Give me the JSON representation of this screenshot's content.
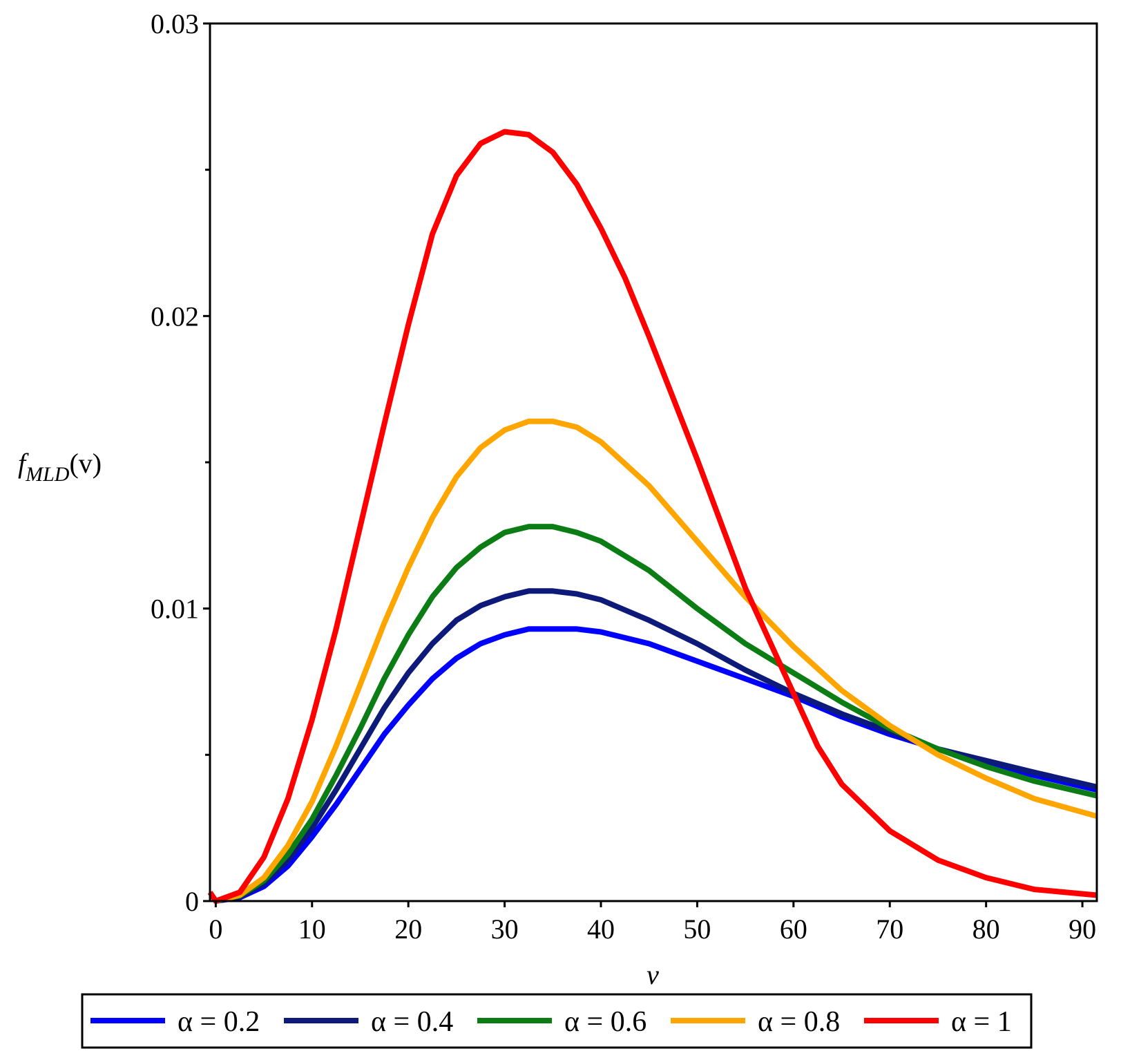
{
  "chart_data": {
    "type": "line",
    "title": "",
    "xlabel": "v",
    "ylabel": {
      "main": "f",
      "subscript": "MLD",
      "arg": "(v)"
    },
    "xlim": [
      -0.6,
      91.5
    ],
    "ylim": [
      0,
      0.03
    ],
    "xticks": [
      0,
      10,
      20,
      30,
      40,
      50,
      60,
      70,
      80,
      90
    ],
    "xtick_labels": [
      "0",
      "10",
      "20",
      "30",
      "40",
      "50",
      "60",
      "70",
      "80",
      "90"
    ],
    "yticks": [
      0,
      0.01,
      0.02,
      0.03
    ],
    "ytick_labels": [
      "0",
      "0.01",
      "0.02",
      "0.03"
    ],
    "y_minor_ticks": [
      0.005,
      0.015,
      0.025
    ],
    "grid": false,
    "legend_position": "bottom",
    "series": [
      {
        "name": "α = 0.2",
        "color": "#0000ff",
        "x": [
          0,
          2.5,
          5,
          7.5,
          10,
          12.5,
          15,
          17.5,
          20,
          22.5,
          25,
          27.5,
          30,
          32.5,
          35,
          37.5,
          40,
          45,
          50,
          55,
          60,
          65,
          70,
          75,
          80,
          85,
          91.5
        ],
        "y": [
          0,
          0.00012,
          0.0005,
          0.0012,
          0.0022,
          0.0033,
          0.0045,
          0.0057,
          0.0067,
          0.0076,
          0.0083,
          0.0088,
          0.0091,
          0.0093,
          0.0093,
          0.0093,
          0.0092,
          0.0088,
          0.0082,
          0.0076,
          0.007,
          0.0063,
          0.0057,
          0.0052,
          0.0047,
          0.0043,
          0.0038
        ]
      },
      {
        "name": "α = 0.4",
        "color": "#0d1a7a",
        "x": [
          0,
          2.5,
          5,
          7.5,
          10,
          12.5,
          15,
          17.5,
          20,
          22.5,
          25,
          27.5,
          30,
          32.5,
          35,
          37.5,
          40,
          45,
          50,
          55,
          60,
          65,
          70,
          75,
          80,
          85,
          91.5
        ],
        "y": [
          0,
          0.00015,
          0.0006,
          0.0014,
          0.0025,
          0.0038,
          0.0052,
          0.0066,
          0.0078,
          0.0088,
          0.0096,
          0.0101,
          0.0104,
          0.0106,
          0.0106,
          0.0105,
          0.0103,
          0.0096,
          0.0088,
          0.0079,
          0.0071,
          0.0064,
          0.0058,
          0.0052,
          0.0048,
          0.0044,
          0.0039
        ]
      },
      {
        "name": "α = 0.6",
        "color": "#0b7d14",
        "x": [
          0,
          2.5,
          5,
          7.5,
          10,
          12.5,
          15,
          17.5,
          20,
          22.5,
          25,
          27.5,
          30,
          32.5,
          35,
          37.5,
          40,
          45,
          50,
          55,
          60,
          65,
          70,
          75,
          80,
          85,
          91.5
        ],
        "y": [
          0,
          0.00018,
          0.0007,
          0.0016,
          0.0028,
          0.0043,
          0.0059,
          0.0076,
          0.0091,
          0.0104,
          0.0114,
          0.0121,
          0.0126,
          0.0128,
          0.0128,
          0.0126,
          0.0123,
          0.0113,
          0.01,
          0.0088,
          0.0078,
          0.0068,
          0.0059,
          0.0052,
          0.0046,
          0.0041,
          0.0036
        ]
      },
      {
        "name": "α = 0.8",
        "color": "#ffa500",
        "x": [
          0,
          2.5,
          5,
          7.5,
          10,
          12.5,
          15,
          17.5,
          20,
          22.5,
          25,
          27.5,
          30,
          32.5,
          35,
          37.5,
          40,
          45,
          50,
          55,
          60,
          65,
          70,
          75,
          80,
          85,
          91.5
        ],
        "y": [
          0,
          0.0002,
          0.0008,
          0.0019,
          0.0034,
          0.0053,
          0.0074,
          0.0095,
          0.0114,
          0.0131,
          0.0145,
          0.0155,
          0.0161,
          0.0164,
          0.0164,
          0.0162,
          0.0157,
          0.0142,
          0.0123,
          0.0104,
          0.0087,
          0.0072,
          0.006,
          0.005,
          0.0042,
          0.0035,
          0.0029
        ]
      },
      {
        "name": "α = 1",
        "color": "#ff0000",
        "x": [
          -0.6,
          0,
          2.5,
          5,
          7.5,
          10,
          12.5,
          15,
          17.5,
          20,
          22.5,
          25,
          27.5,
          30,
          32.5,
          35,
          37.5,
          40,
          42.5,
          45,
          50,
          55,
          60,
          62.5,
          65,
          70,
          75,
          80,
          85,
          91.5
        ],
        "y": [
          0.0003,
          0,
          0.0003,
          0.0015,
          0.0035,
          0.0062,
          0.0093,
          0.0128,
          0.0163,
          0.0197,
          0.0228,
          0.0248,
          0.0259,
          0.0263,
          0.0262,
          0.0256,
          0.0245,
          0.023,
          0.0213,
          0.0193,
          0.0151,
          0.0107,
          0.0071,
          0.0053,
          0.004,
          0.0024,
          0.0014,
          0.0008,
          0.0004,
          0.0002
        ]
      }
    ]
  }
}
